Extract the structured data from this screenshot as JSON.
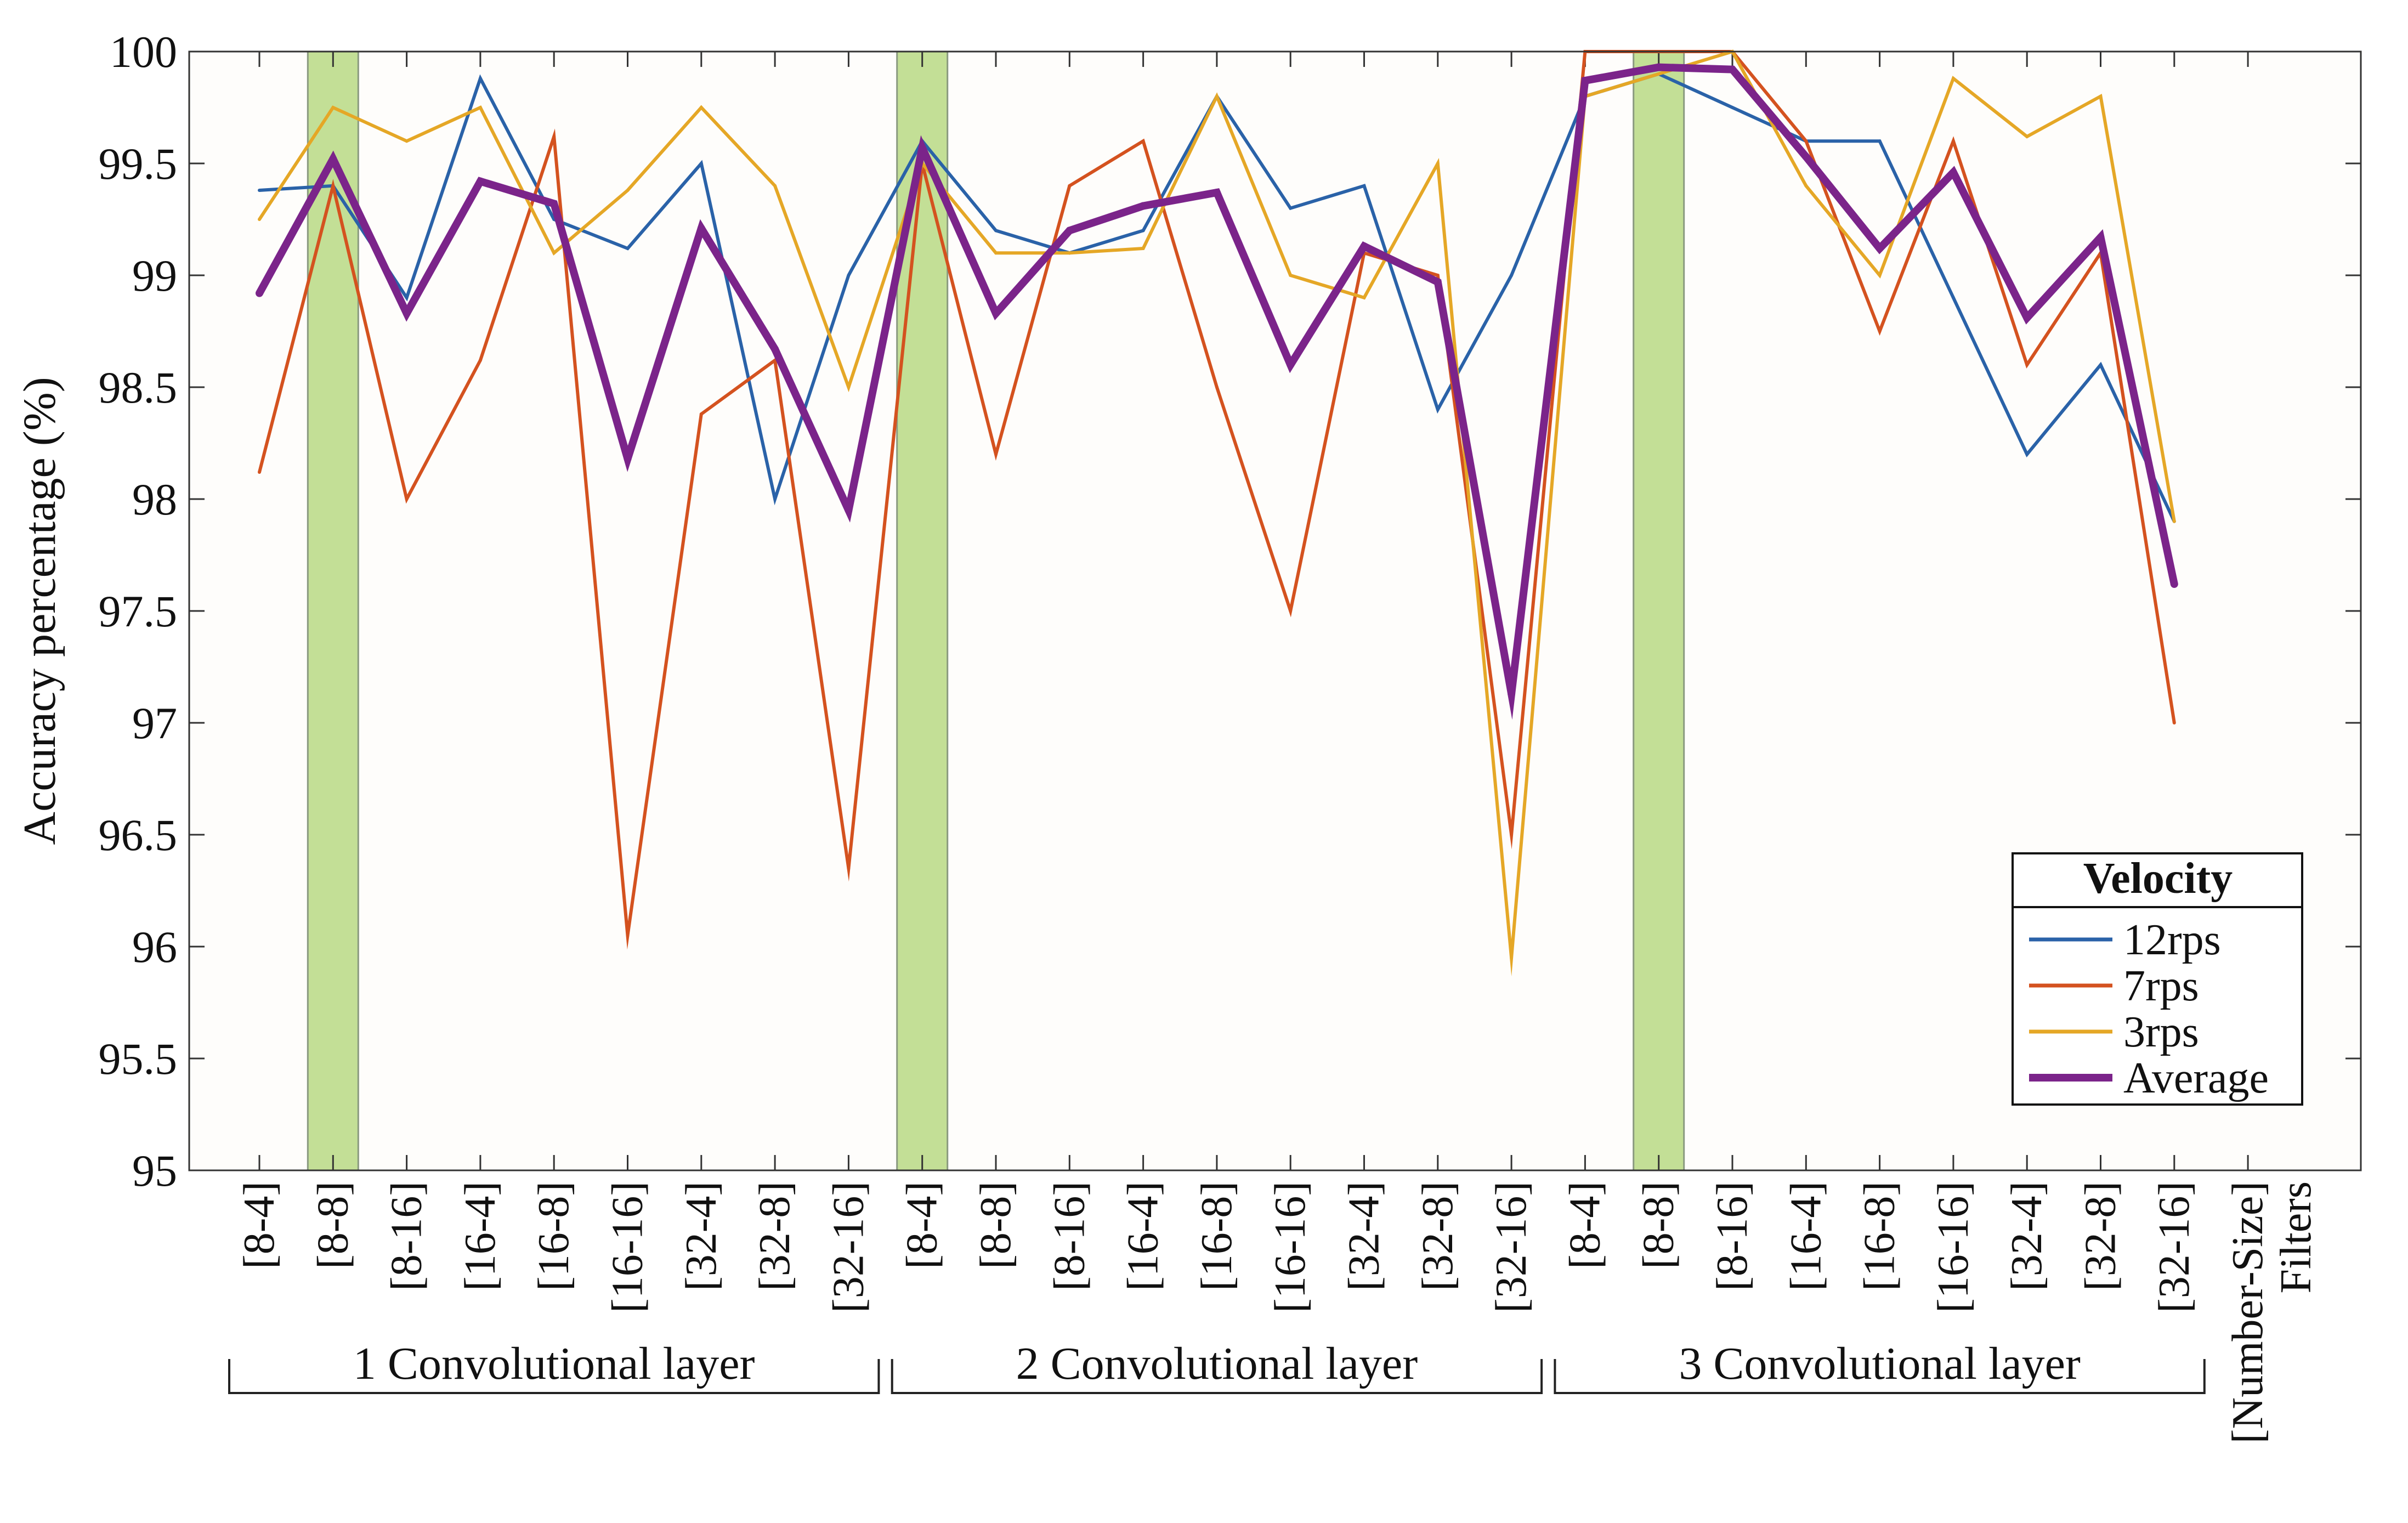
{
  "chart_data": {
    "type": "line",
    "title": "",
    "ylabel": "Accuracy percentage (%)",
    "xlabel": "[Number-Size] Filters",
    "ylim": [
      95,
      100
    ],
    "yticks": [
      "95",
      "95.5",
      "96",
      "96.5",
      "97",
      "97.5",
      "98",
      "98.5",
      "99",
      "99.5",
      "100"
    ],
    "categories": [
      "[8-4]",
      "[8-8]",
      "[8-16]",
      "[16-4]",
      "[16-8]",
      "[16-16]",
      "[32-4]",
      "[32-8]",
      "[32-16]",
      "[8-4]",
      "[8-8]",
      "[8-16]",
      "[16-4]",
      "[16-8]",
      "[16-16]",
      "[32-4]",
      "[32-8]",
      "[32-16]",
      "[8-4]",
      "[8-8]",
      "[8-16]",
      "[16-4]",
      "[16-8]",
      "[16-16]",
      "[32-4]",
      "[32-8]",
      "[32-16]"
    ],
    "extra_tick_label": "[Number-Size]",
    "groups": [
      {
        "label": "1 Convolutional layer",
        "start": 0,
        "end": 8
      },
      {
        "label": "2 Convolutional layer",
        "start": 9,
        "end": 17
      },
      {
        "label": "3 Convolutional layer",
        "start": 18,
        "end": 26
      }
    ],
    "highlighted_indices": [
      1,
      9,
      19
    ],
    "highlight_color": "#c3df96",
    "series": [
      {
        "name": "12rps",
        "color": "#2a62a8",
        "width": "thin",
        "values": [
          99.38,
          99.4,
          98.9,
          99.88,
          99.25,
          99.12,
          99.5,
          98.0,
          99.0,
          99.6,
          99.2,
          99.1,
          99.2,
          99.8,
          99.3,
          99.4,
          98.4,
          99.0,
          99.8,
          99.9,
          99.75,
          99.6,
          99.6,
          98.9,
          98.2,
          98.6,
          97.9
        ]
      },
      {
        "name": "7rps",
        "color": "#d4521f",
        "width": "thin",
        "values": [
          98.12,
          99.4,
          98.0,
          98.62,
          99.62,
          96.05,
          98.38,
          98.62,
          96.35,
          99.5,
          98.2,
          99.4,
          99.6,
          98.5,
          97.5,
          99.1,
          99.0,
          96.5,
          100.0,
          100.0,
          100.0,
          99.6,
          98.75,
          99.6,
          98.6,
          99.1,
          97.0
        ]
      },
      {
        "name": "3rps",
        "color": "#e5a726",
        "width": "thin",
        "values": [
          99.25,
          99.75,
          99.6,
          99.75,
          99.1,
          99.38,
          99.75,
          99.4,
          98.5,
          99.5,
          99.1,
          99.1,
          99.12,
          99.8,
          99.0,
          98.9,
          99.5,
          95.95,
          99.8,
          99.9,
          100.0,
          99.4,
          99.0,
          99.88,
          99.62,
          99.8,
          97.9
        ]
      },
      {
        "name": "Average",
        "color": "#7b248a",
        "width": "thick",
        "values": [
          98.92,
          99.52,
          98.83,
          99.42,
          99.32,
          98.18,
          99.21,
          98.67,
          97.95,
          99.57,
          98.83,
          99.2,
          99.31,
          99.37,
          98.6,
          99.13,
          98.97,
          97.13,
          99.87,
          99.93,
          99.92,
          99.53,
          99.12,
          99.46,
          98.81,
          99.17,
          97.62
        ]
      }
    ],
    "legend": {
      "title": "Velocity",
      "position": "bottom-right"
    }
  }
}
